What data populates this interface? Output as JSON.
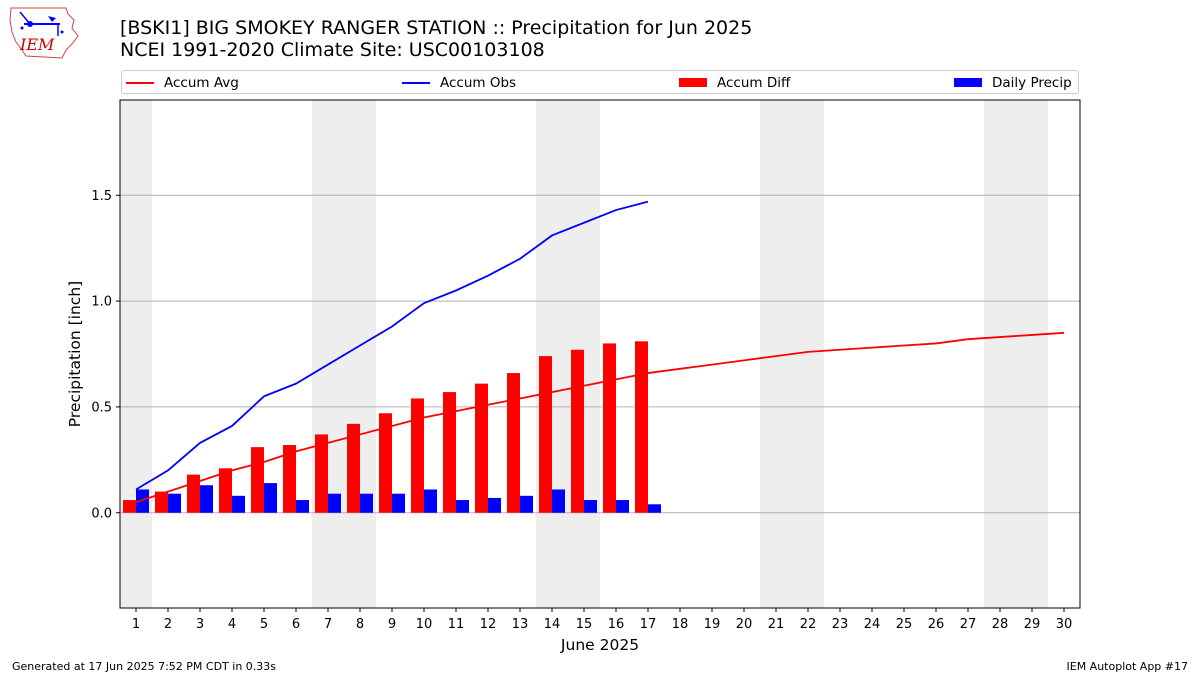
{
  "header": {
    "title_line1": "[BSKI1] BIG SMOKEY RANGER STATION :: Precipitation for Jun 2025",
    "title_line2": "NCEI 1991-2020 Climate Site: USC00103108",
    "logo_text": "IEM"
  },
  "legend": {
    "accum_avg": "Accum Avg",
    "accum_obs": "Accum Obs",
    "accum_diff": "Accum Diff",
    "daily_precip": "Daily Precip"
  },
  "footer": {
    "generated": "Generated at 17 Jun 2025 7:52 PM CDT in 0.33s",
    "app": "IEM Autoplot App #17"
  },
  "colors": {
    "accum_avg": "#ff0000",
    "accum_obs": "#0000ff",
    "accum_diff": "#ff0000",
    "daily_precip": "#0000ff",
    "weekend_shade": "#eeeeee",
    "grid": "#b0b0b0"
  },
  "chart_data": {
    "type": "bar",
    "xlabel": "June 2025",
    "ylabel": "Precipitation [inch]",
    "xlim": [
      1,
      30
    ],
    "ylim": [
      -0.45,
      1.95
    ],
    "yticks": [
      0.0,
      0.5,
      1.0,
      1.5
    ],
    "ytick_labels": [
      "0.0",
      "0.5",
      "1.0",
      "1.5"
    ],
    "grid": "horizontal",
    "legend_position": "top",
    "days": [
      1,
      2,
      3,
      4,
      5,
      6,
      7,
      8,
      9,
      10,
      11,
      12,
      13,
      14,
      15,
      16,
      17,
      18,
      19,
      20,
      21,
      22,
      23,
      24,
      25,
      26,
      27,
      28,
      29,
      30
    ],
    "weekend_spans": [
      [
        1,
        1
      ],
      [
        7,
        8
      ],
      [
        14,
        15
      ],
      [
        21,
        22
      ],
      [
        28,
        29
      ]
    ],
    "series": [
      {
        "name": "Accum Avg",
        "kind": "line",
        "x": [
          1,
          2,
          3,
          4,
          5,
          6,
          7,
          8,
          9,
          10,
          11,
          12,
          13,
          14,
          15,
          16,
          17,
          18,
          19,
          20,
          21,
          22,
          23,
          24,
          25,
          26,
          27,
          28,
          29,
          30
        ],
        "values": [
          0.05,
          0.1,
          0.15,
          0.2,
          0.24,
          0.29,
          0.33,
          0.37,
          0.41,
          0.45,
          0.48,
          0.51,
          0.54,
          0.57,
          0.6,
          0.63,
          0.66,
          0.68,
          0.7,
          0.72,
          0.74,
          0.76,
          0.77,
          0.78,
          0.79,
          0.8,
          0.82,
          0.83,
          0.84,
          0.85
        ]
      },
      {
        "name": "Accum Obs",
        "kind": "line",
        "x": [
          1,
          2,
          3,
          4,
          5,
          6,
          7,
          8,
          9,
          10,
          11,
          12,
          13,
          14,
          15,
          16,
          17
        ],
        "values": [
          0.11,
          0.2,
          0.33,
          0.41,
          0.55,
          0.61,
          0.7,
          0.79,
          0.88,
          0.99,
          1.05,
          1.12,
          1.2,
          1.31,
          1.37,
          1.43,
          1.47
        ]
      },
      {
        "name": "Accum Diff",
        "kind": "bar",
        "x": [
          1,
          2,
          3,
          4,
          5,
          6,
          7,
          8,
          9,
          10,
          11,
          12,
          13,
          14,
          15,
          16,
          17
        ],
        "values": [
          0.06,
          0.1,
          0.18,
          0.21,
          0.31,
          0.32,
          0.37,
          0.42,
          0.47,
          0.54,
          0.57,
          0.61,
          0.66,
          0.74,
          0.77,
          0.8,
          0.81
        ]
      },
      {
        "name": "Daily Precip",
        "kind": "bar",
        "x": [
          1,
          2,
          3,
          4,
          5,
          6,
          7,
          8,
          9,
          10,
          11,
          12,
          13,
          14,
          15,
          16,
          17
        ],
        "values": [
          0.11,
          0.09,
          0.13,
          0.08,
          0.14,
          0.06,
          0.09,
          0.09,
          0.09,
          0.11,
          0.06,
          0.07,
          0.08,
          0.11,
          0.06,
          0.06,
          0.04
        ]
      }
    ]
  }
}
